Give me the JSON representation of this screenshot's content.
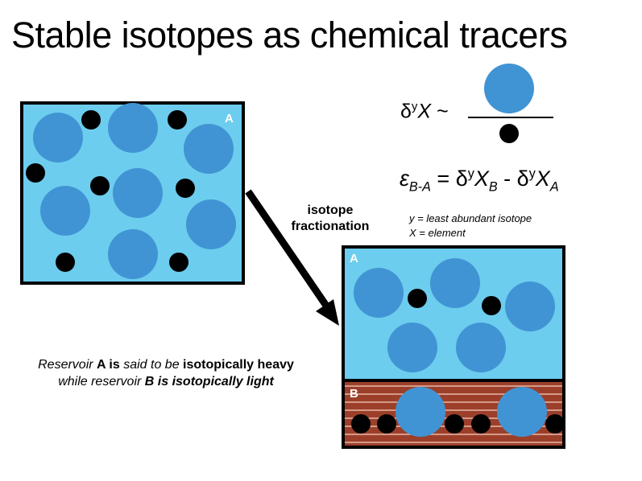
{
  "title": "Stable isotopes as chemical tracers",
  "reservoir_initial": {
    "label": "A"
  },
  "reservoir_after": {
    "label_top": "A",
    "label_bottom": "B"
  },
  "process_label_line1": "isotope",
  "process_label_line2": "fractionation",
  "formula_delta": {
    "symbol": "δ",
    "sup": "y",
    "var": "X",
    "tilde": "~"
  },
  "formula_epsilon": {
    "eps": "ε",
    "eps_sub": "B-A",
    "eq": "=",
    "delta": "δ",
    "sup": "y",
    "var": "X",
    "sub_b": "B",
    "minus": "-",
    "sub_a": "A"
  },
  "legend": {
    "y": "y = least abundant isotope",
    "x": "X = element"
  },
  "caption": {
    "p1": "Reservoir ",
    "a": "A",
    "p2": " is ",
    "p3": "said to be ",
    "heavy": "isotopically heavy",
    "p4": "while reservoir ",
    "b": "B",
    "p5": " is isotopically light"
  },
  "colors": {
    "water": "#6ccdee",
    "heavy_isotope": "#4194d4",
    "light_isotope": "#000000",
    "sediment": "#9c3f2a",
    "sediment_lines": "#e8b9a8",
    "outline": "#000000"
  }
}
